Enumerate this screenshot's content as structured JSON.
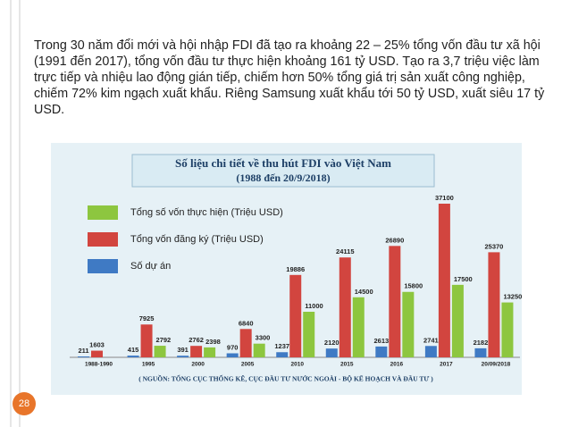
{
  "paragraph": "Trong 30 năm đổi mới và hội nhập FDI đã tạo ra khoảng 22 – 25% tổng vốn đầu tư xã hội (1991 đến 2017), tổng vốn đầu tư thực hiện khoảng 161 tỷ USD. Tạo ra 3,7 triệu việc làm trực tiếp và nhiệu lao động gián tiếp, chiếm hơn 50% tổng giá trị sản xuất công nghiệp, chiếm 72% kim ngạch xuất khẩu. Riêng Samsung xuất khẩu tới 50 tỷ USD, xuất siêu 17 tỷ USD.",
  "page_number": "28",
  "chart_data": {
    "type": "bar",
    "title": "Số liệu chi tiết về thu hút FDI vào Việt Nam",
    "subtitle": "(1988 đến 20/9/2018)",
    "source": "( NGUỒN: TỔNG CỤC THỐNG KÊ, CỤC ĐẦU TƯ NƯỚC NGOÀI - BỘ KẾ HOẠCH VÀ ĐẦU TƯ )",
    "categories": [
      "1988-1990",
      "1995",
      "2000",
      "2005",
      "2010",
      "2015",
      "2016",
      "2017",
      "20/09/2018"
    ],
    "series": [
      {
        "name": "Số dự án",
        "color": "#3f7ac4",
        "values": [
          211,
          415,
          391,
          970,
          1237,
          2120,
          2613,
          2741,
          2182
        ]
      },
      {
        "name": "Tổng vốn đăng ký (Triệu USD)",
        "color": "#d2453f",
        "values": [
          1603,
          7925,
          2762,
          6840,
          19886,
          24115,
          26890,
          37100,
          25370
        ]
      },
      {
        "name": "Tổng số vốn thực hiện (Triệu USD)",
        "color": "#8dc63f",
        "values": [
          null,
          2792,
          2398,
          3300,
          11000,
          14500,
          15800,
          17500,
          13250
        ]
      }
    ]
  }
}
